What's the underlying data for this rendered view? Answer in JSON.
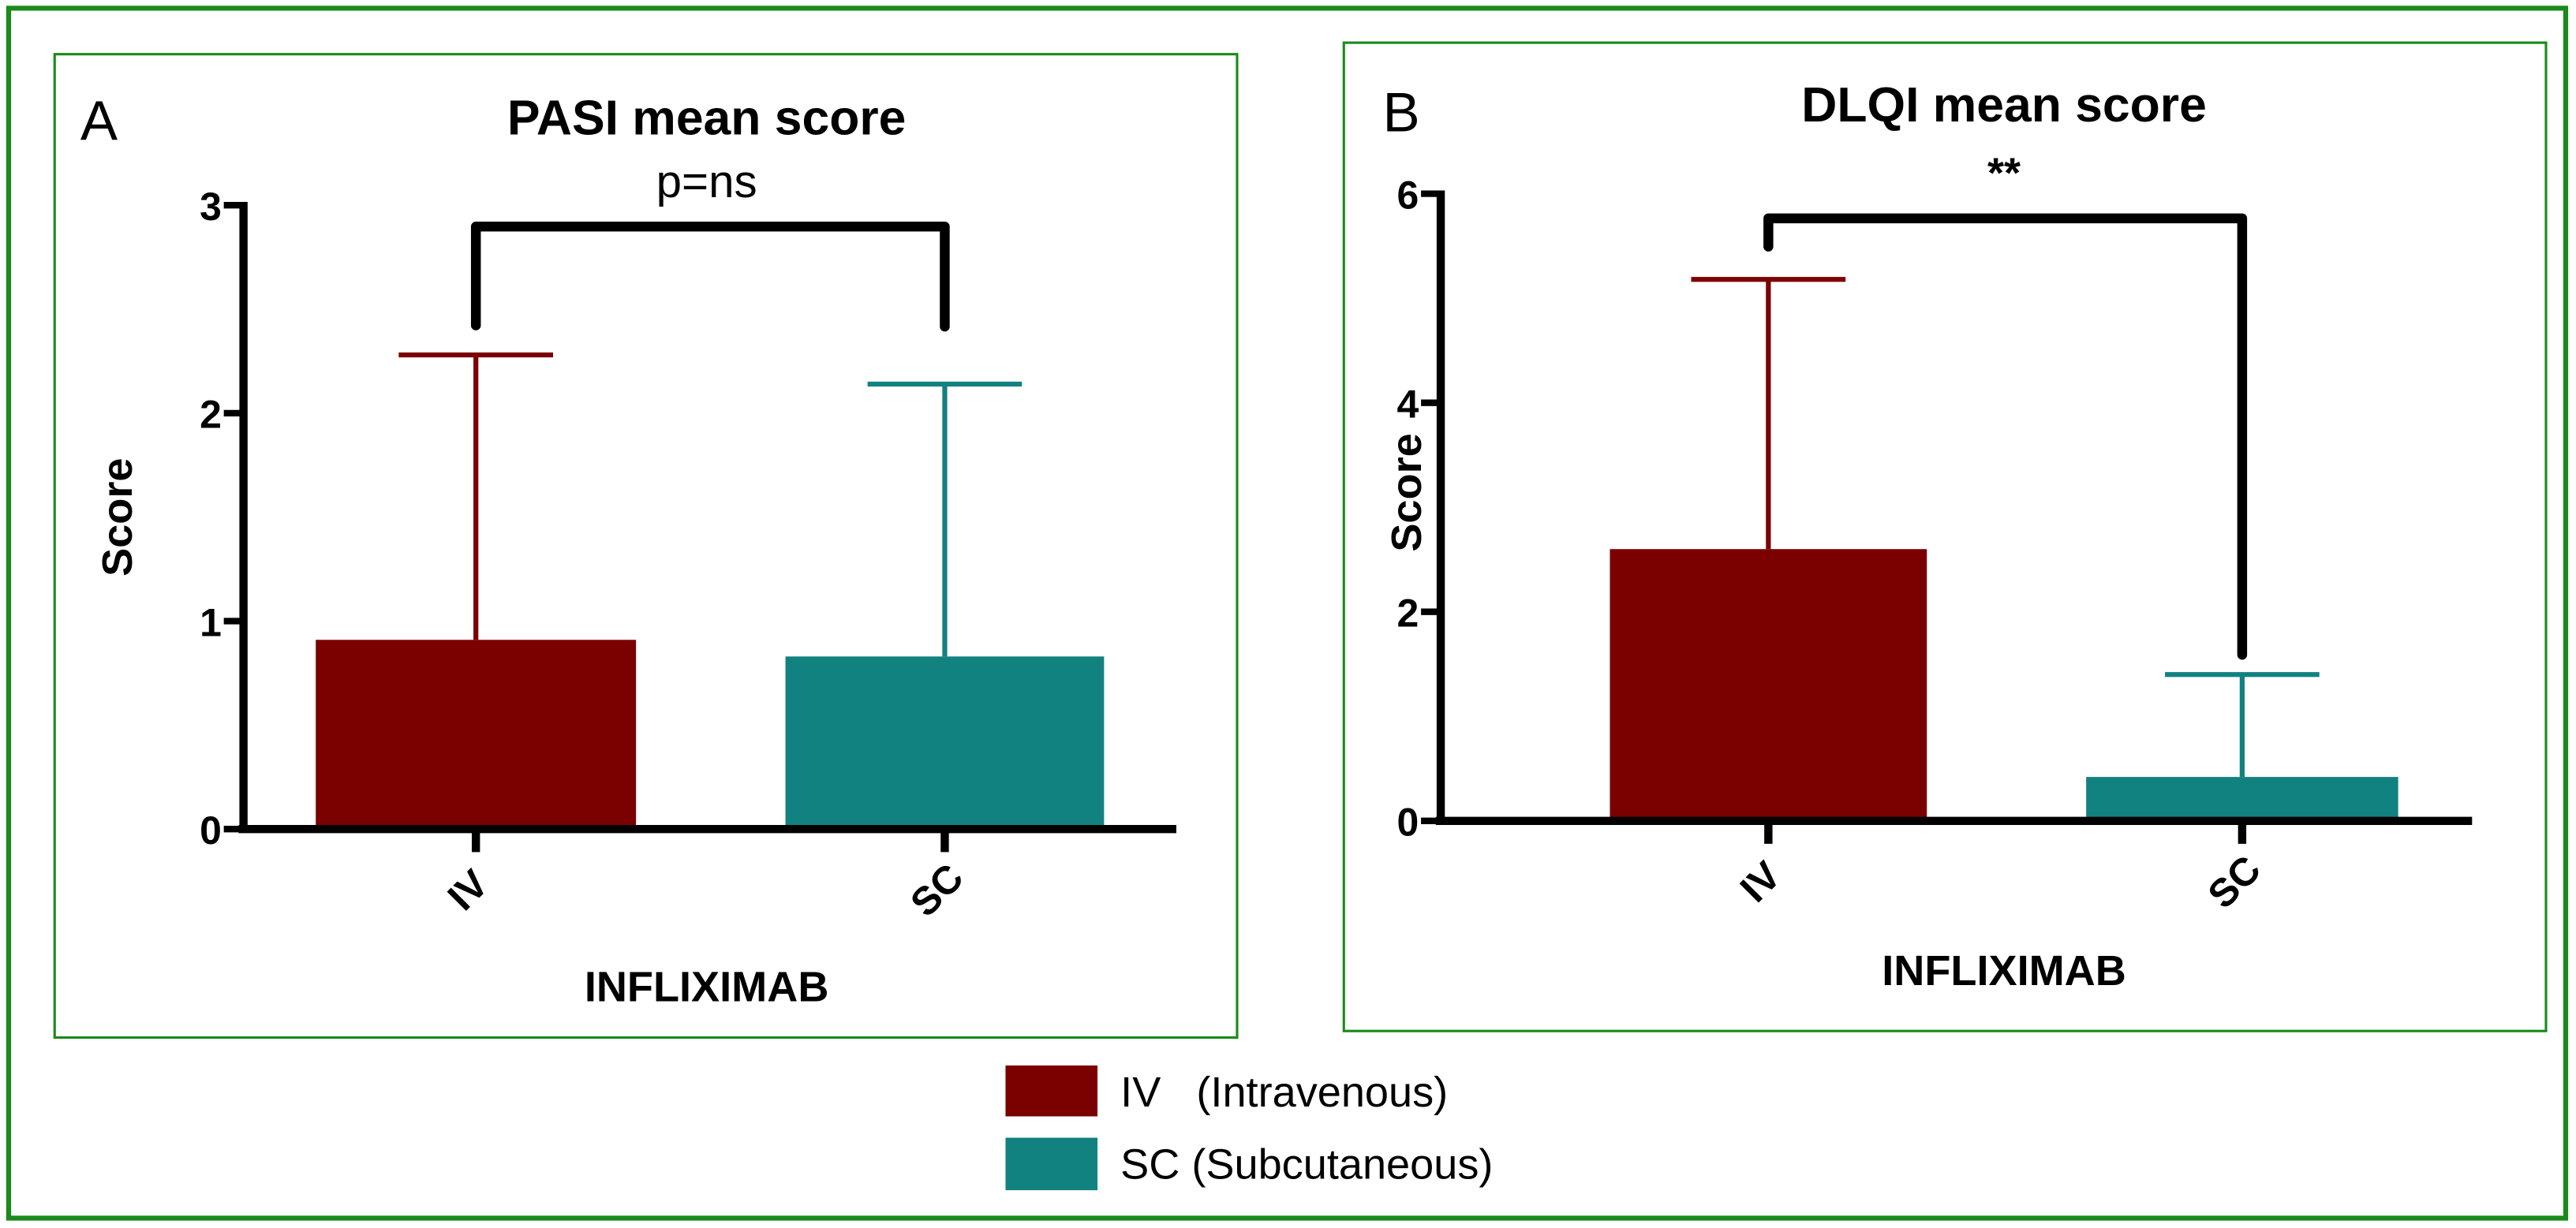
{
  "legend": {
    "items": [
      {
        "label": "IV   (Intravenous)",
        "color": "#7b0000"
      },
      {
        "label": "SC (Subcutaneous)",
        "color": "#128280"
      }
    ]
  },
  "chart_data": [
    {
      "type": "bar",
      "panel_label": "A",
      "title": "PASI mean score",
      "xlabel": "INFLIXIMAB",
      "ylabel": "Score",
      "categories": [
        "IV",
        "SC"
      ],
      "values": [
        0.91,
        0.83
      ],
      "error_upper": [
        2.28,
        2.14
      ],
      "colors": [
        "#7b0000",
        "#128280"
      ],
      "ylim": [
        0,
        3
      ],
      "yticks": [
        "0",
        "1",
        "2",
        "3"
      ],
      "grid": false,
      "significance": {
        "label": "p=ns",
        "between": [
          "IV",
          "SC"
        ]
      }
    },
    {
      "type": "bar",
      "panel_label": "B",
      "title": "DLQI mean score",
      "xlabel": "INFLIXIMAB",
      "ylabel": "Score",
      "categories": [
        "IV",
        "SC"
      ],
      "values": [
        2.6,
        0.42
      ],
      "error_upper": [
        5.18,
        1.4
      ],
      "colors": [
        "#7b0000",
        "#128280"
      ],
      "ylim": [
        0,
        6
      ],
      "yticks": [
        "0",
        "2",
        "4",
        "6"
      ],
      "grid": false,
      "significance": {
        "label": "**",
        "between": [
          "IV",
          "SC"
        ]
      }
    }
  ],
  "frame_color": "#1a8a1a"
}
